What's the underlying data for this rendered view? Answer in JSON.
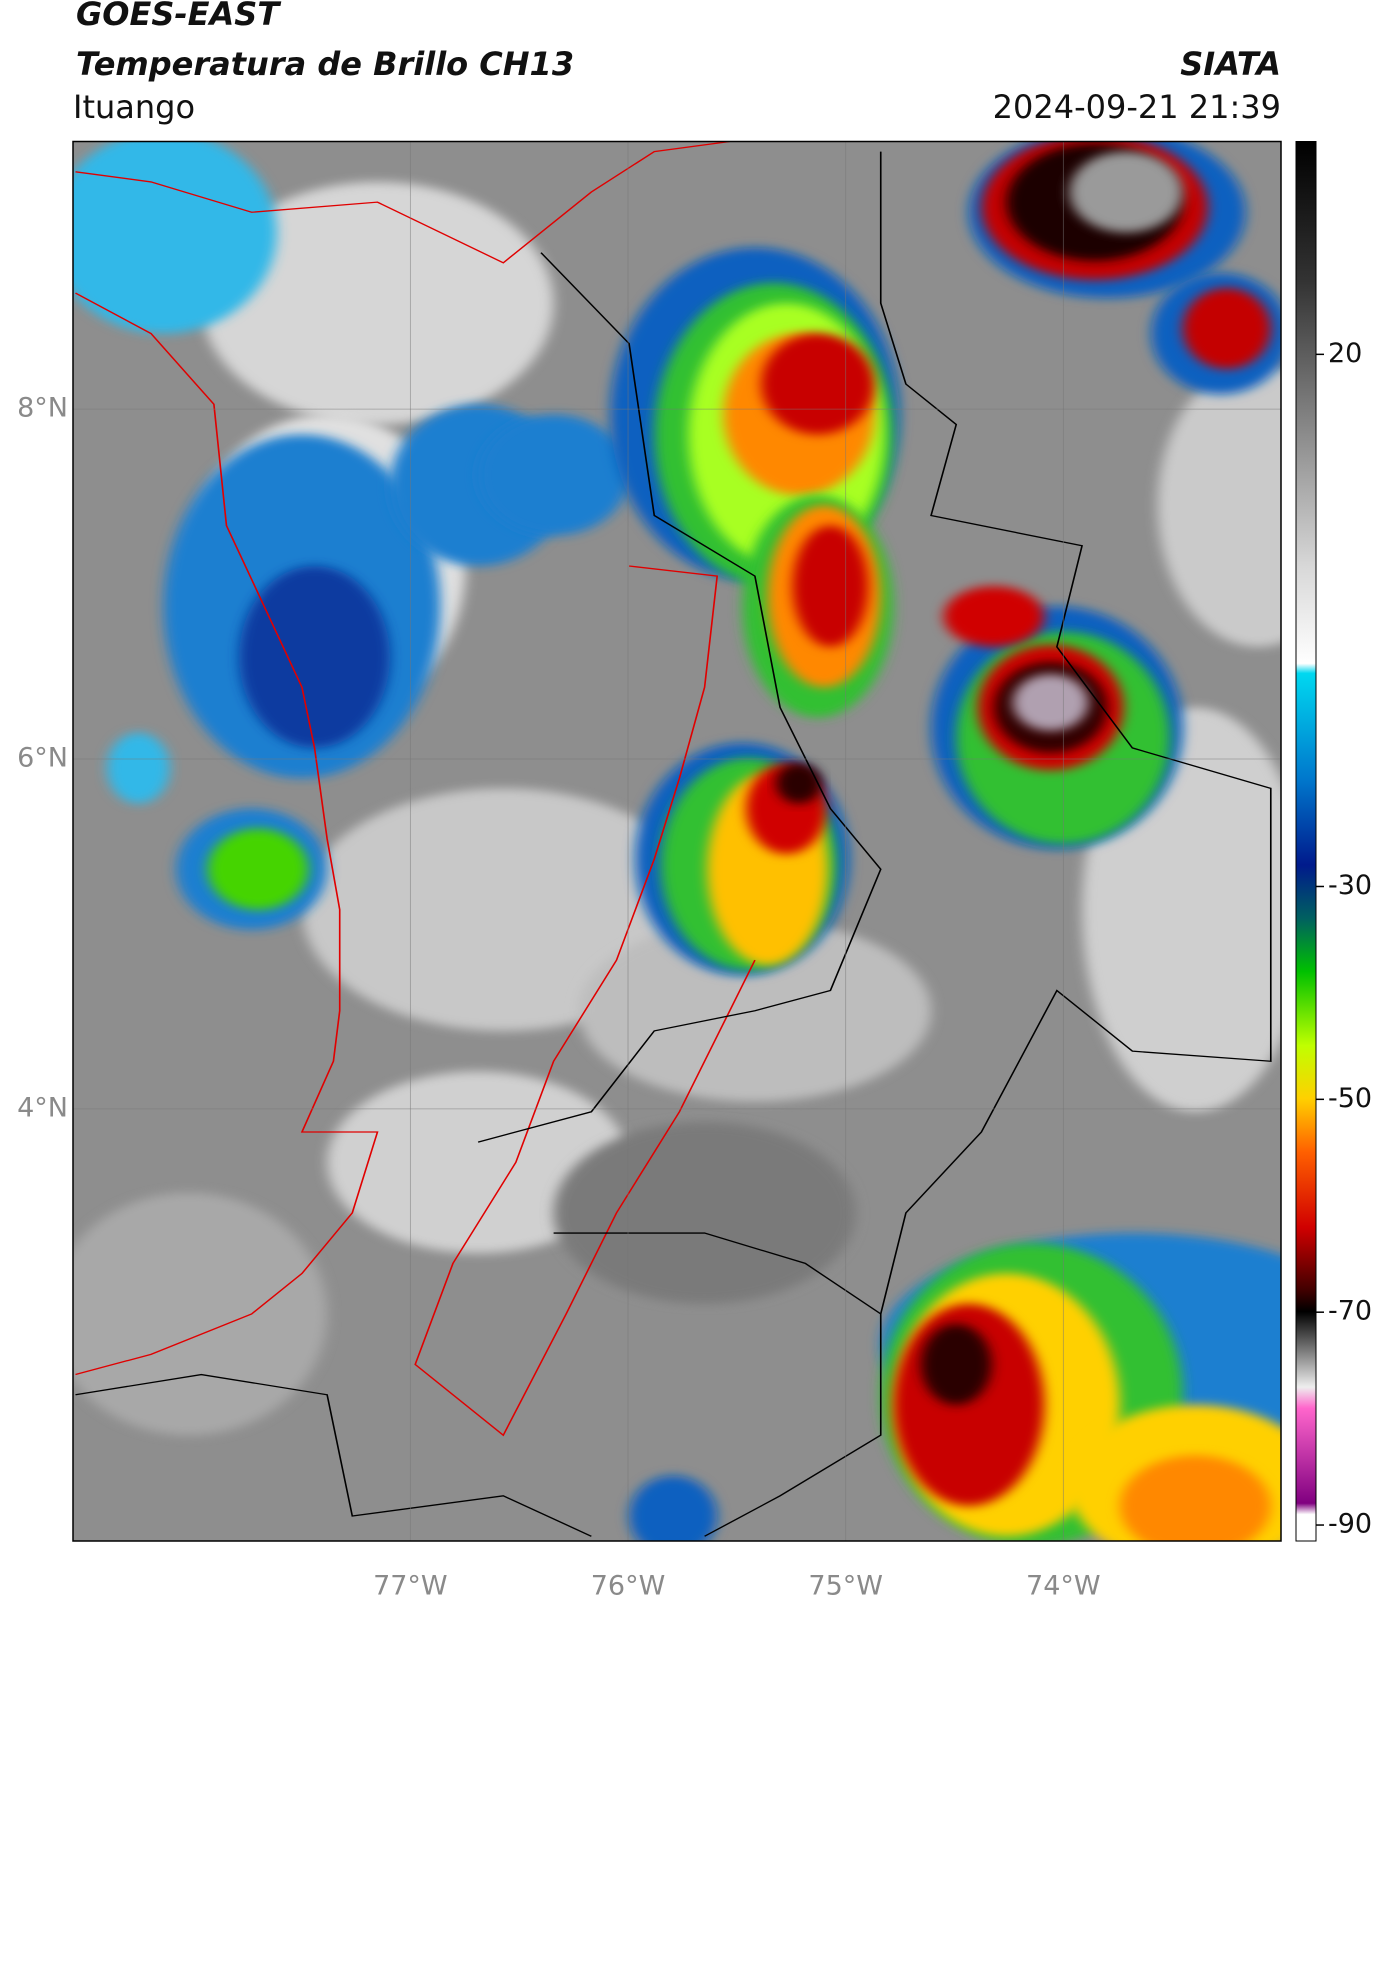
{
  "header": {
    "title": "GOES-EAST",
    "subtitle": "Temperatura de Brillo CH13",
    "source": "SIATA",
    "location": "Ituango",
    "datetime": "2024-09-21 21:39"
  },
  "map": {
    "lon_range": [
      -78.55,
      -73.0
    ],
    "lat_range": [
      1.53,
      9.53
    ],
    "xticks": [
      {
        "value": -77,
        "label": "77°W"
      },
      {
        "value": -76,
        "label": "76°W"
      },
      {
        "value": -75,
        "label": "75°W"
      },
      {
        "value": -74,
        "label": "74°W"
      }
    ],
    "yticks": [
      {
        "value": 8,
        "label": "8°N"
      },
      {
        "value": 6,
        "label": "6°N"
      },
      {
        "value": 4,
        "label": "4°N"
      }
    ],
    "grid": true
  },
  "colorbar": {
    "range": [
      -91.5,
      40
    ],
    "ticks": [
      20,
      -30,
      -50,
      -70,
      -90
    ]
  }
}
